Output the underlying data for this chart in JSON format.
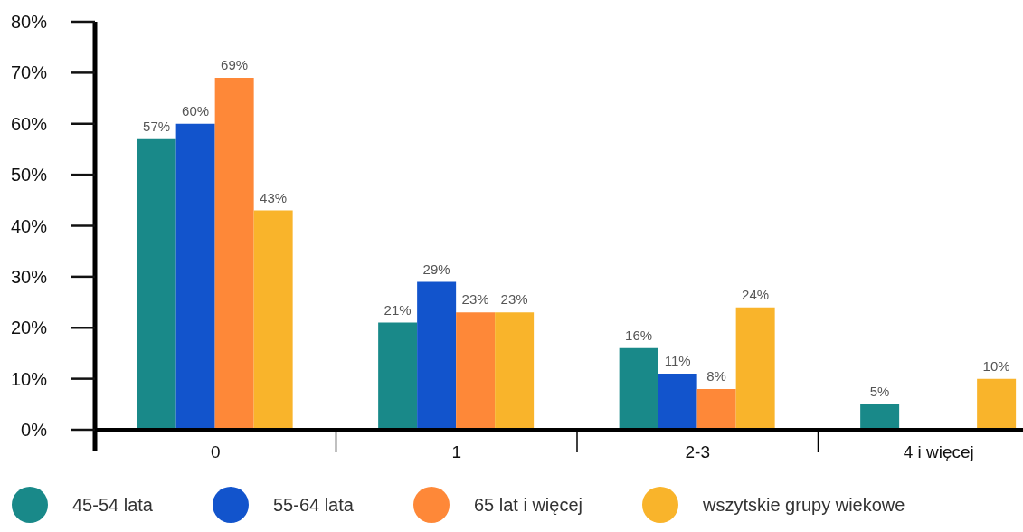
{
  "chart_data": {
    "type": "bar",
    "categories": [
      "0",
      "1",
      "2-3",
      "4 i więcej"
    ],
    "series": [
      {
        "name": "45-54 lata",
        "color": "#198989",
        "values": [
          57,
          21,
          16,
          5
        ],
        "value_labels": [
          "57%",
          "21%",
          "16%",
          "5%"
        ]
      },
      {
        "name": "55-64 lata",
        "color": "#1254cc",
        "values": [
          60,
          29,
          11,
          null
        ],
        "value_labels": [
          "60%",
          "29%",
          "11%",
          null
        ]
      },
      {
        "name": "65 lat i więcej",
        "color": "#fe8838",
        "values": [
          69,
          23,
          8,
          null
        ],
        "value_labels": [
          "69%",
          "23%",
          "8%",
          null
        ]
      },
      {
        "name": "wszytskie grupy wiekowe",
        "color": "#f9b42b",
        "values": [
          43,
          23,
          24,
          10
        ],
        "value_labels": [
          "43%",
          "23%",
          "24%",
          "10%"
        ]
      }
    ],
    "ylim": [
      0,
      80
    ],
    "yticks": [
      {
        "value": 0,
        "label": "0%"
      },
      {
        "value": 10,
        "label": "10%"
      },
      {
        "value": 20,
        "label": "20%"
      },
      {
        "value": 30,
        "label": "30%"
      },
      {
        "value": 40,
        "label": "40%"
      },
      {
        "value": 50,
        "label": "50%"
      },
      {
        "value": 60,
        "label": "60%"
      },
      {
        "value": 70,
        "label": "70%"
      },
      {
        "value": 80,
        "label": "80%"
      }
    ],
    "legend": "bottom"
  }
}
